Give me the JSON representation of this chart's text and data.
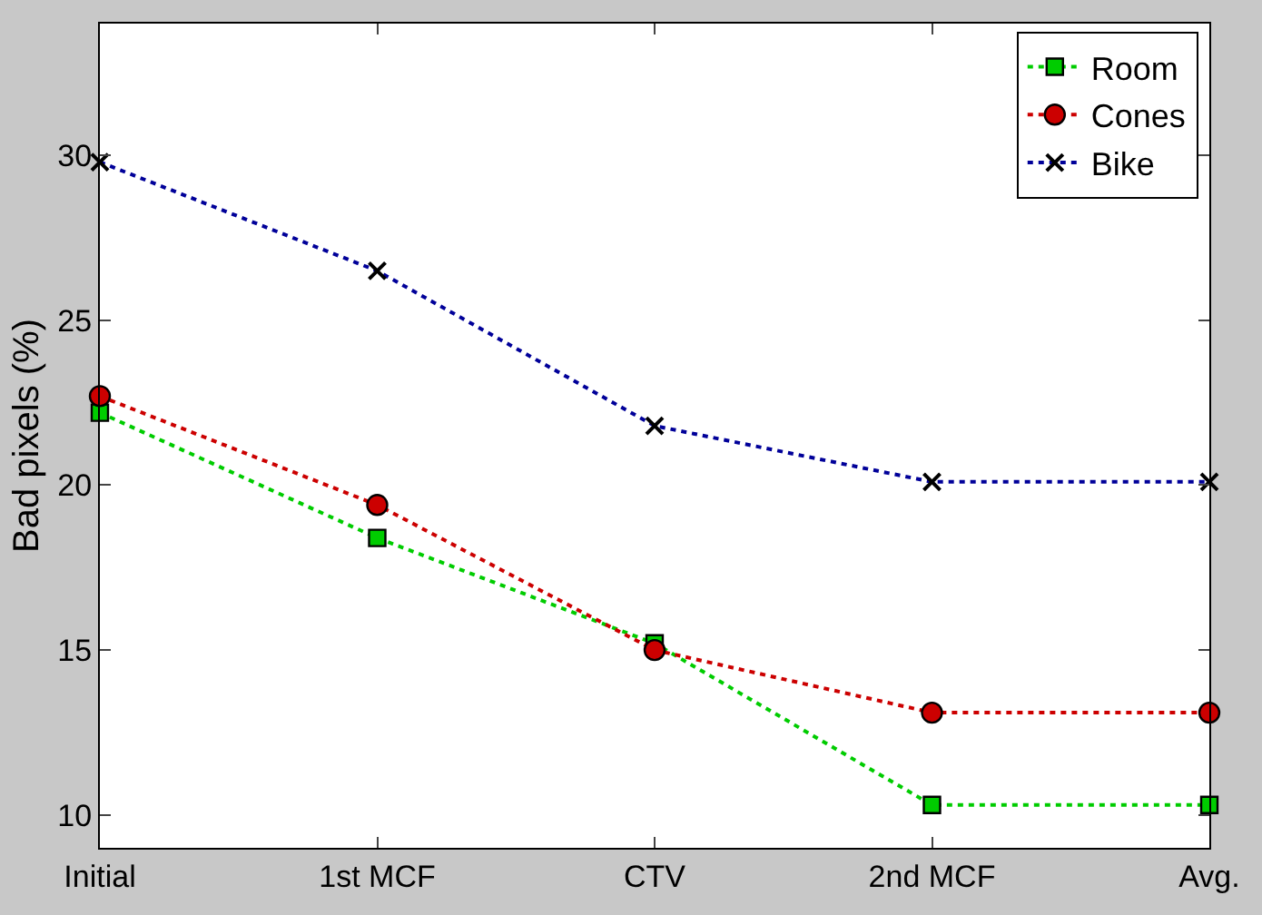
{
  "chart_data": {
    "type": "line",
    "ylabel": "Bad pixels (%)",
    "categories": [
      "Initial",
      "1st MCF",
      "CTV",
      "2nd MCF",
      "Avg."
    ],
    "ylim": [
      9,
      34
    ],
    "yticks": [
      10,
      15,
      20,
      25,
      30
    ],
    "line_style": "dotted",
    "legend": "top right",
    "series": [
      {
        "name": "Room",
        "color": "#00cc00",
        "marker": "square",
        "values": [
          22.2,
          18.4,
          15.2,
          10.3,
          10.3
        ]
      },
      {
        "name": "Cones",
        "color": "#cc0000",
        "marker": "circle",
        "values": [
          22.7,
          19.4,
          15.0,
          13.1,
          13.1
        ]
      },
      {
        "name": "Bike",
        "color": "#000099",
        "marker": "cross",
        "values": [
          29.8,
          26.5,
          21.8,
          20.1,
          20.1
        ]
      }
    ]
  }
}
